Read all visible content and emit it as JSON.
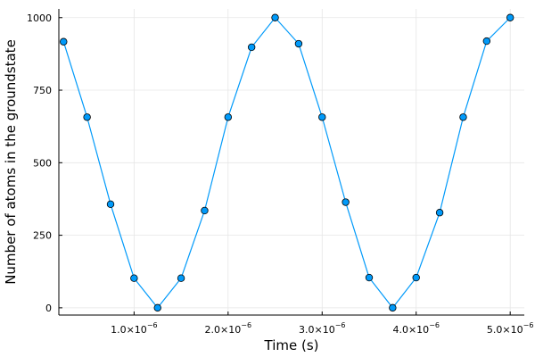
{
  "chart_data": {
    "type": "line",
    "xlabel": "Time (s)",
    "ylabel": "Number of atoms in the groundstate",
    "xlim": [
      2e-07,
      5.15e-06
    ],
    "ylim": [
      -25,
      1030
    ],
    "x_ticks": [
      {
        "value": 1e-06,
        "mantissa": "1.0",
        "base": "×10",
        "exp": "−6"
      },
      {
        "value": 2e-06,
        "mantissa": "2.0",
        "base": "×10",
        "exp": "−6"
      },
      {
        "value": 3e-06,
        "mantissa": "3.0",
        "base": "×10",
        "exp": "−6"
      },
      {
        "value": 4e-06,
        "mantissa": "4.0",
        "base": "×10",
        "exp": "−6"
      },
      {
        "value": 5e-06,
        "mantissa": "5.0",
        "base": "×10",
        "exp": "−6"
      }
    ],
    "y_ticks": [
      {
        "value": 0,
        "label": "0"
      },
      {
        "value": 250,
        "label": "250"
      },
      {
        "value": 500,
        "label": "500"
      },
      {
        "value": 750,
        "label": "750"
      },
      {
        "value": 1000,
        "label": "1000"
      }
    ],
    "grid": true,
    "legend": false,
    "series": [
      {
        "color": "#009AFA",
        "marker_color": "#009AFA",
        "marker_edge": "#000000",
        "x": [
          2.5e-07,
          5e-07,
          7.5e-07,
          1e-06,
          1.25e-06,
          1.5e-06,
          1.75e-06,
          2e-06,
          2.25e-06,
          2.5e-06,
          2.75e-06,
          3e-06,
          3.25e-06,
          3.5e-06,
          3.75e-06,
          4e-06,
          4.25e-06,
          4.5e-06,
          4.75e-06,
          5e-06
        ],
        "y": [
          917,
          657,
          357,
          102,
          0,
          102,
          335,
          657,
          898,
          1000,
          910,
          657,
          364,
          104,
          0,
          104,
          328,
          657,
          919,
          1000
        ]
      }
    ]
  }
}
